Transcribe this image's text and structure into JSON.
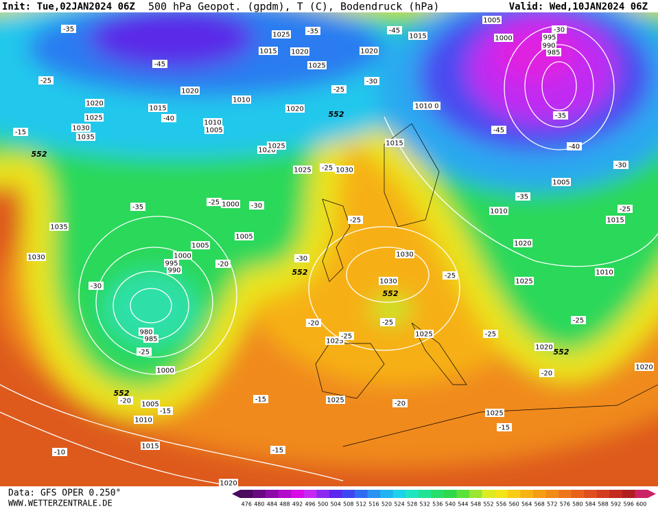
{
  "header": {
    "init": "Init: Tue,02JAN2024 06Z",
    "title": "500 hPa Geopot. (gpdm), T (C), Bodendruck (hPa)",
    "valid": "Valid: Wed,10JAN2024 06Z"
  },
  "footer": {
    "data": "Data: GFS OPER 0.250°",
    "site": "WWW.WETTERZENTRALE.DE"
  },
  "colorbar": {
    "labels": [
      476,
      480,
      484,
      488,
      492,
      496,
      500,
      504,
      508,
      512,
      516,
      520,
      524,
      528,
      532,
      536,
      540,
      544,
      548,
      552,
      556,
      560,
      564,
      568,
      572,
      576,
      580,
      584,
      588,
      592,
      596,
      600
    ],
    "colors": [
      "#4a0a5e",
      "#6a0a82",
      "#8c0aa8",
      "#b40acc",
      "#d80ae6",
      "#c628f2",
      "#8c28f0",
      "#5a28ee",
      "#3c46f0",
      "#2e6cf2",
      "#2a92f2",
      "#22b4f0",
      "#1ed2ea",
      "#1ee6c0",
      "#22e296",
      "#26de6a",
      "#2ed84a",
      "#5ee03a",
      "#9ae632",
      "#dcec22",
      "#f4e41c",
      "#f8cc18",
      "#f6b414",
      "#f49e14",
      "#f28a18",
      "#ee761a",
      "#e8621c",
      "#e04e1e",
      "#d43c20",
      "#c42a20",
      "#b01e22",
      "#cc2266"
    ]
  },
  "pressure_labels": [
    "1025",
    "1015",
    "1020",
    "1025",
    "1020",
    "1015",
    "1005",
    "1000",
    "995",
    "990",
    "985",
    "1020",
    "1015",
    "1010",
    "1020",
    "1010",
    "1005",
    "1020",
    "1025",
    "1025",
    "1030",
    "1015",
    "1010 0",
    "1020",
    "1025",
    "1030",
    "1035",
    "1035",
    "1030",
    "1000",
    "1005",
    "1005",
    "1000",
    "995",
    "990",
    "980",
    "985",
    "1000",
    "1005",
    "1010",
    "1015",
    "1020",
    "1030",
    "1030",
    "1025",
    "1025",
    "1025",
    "1025",
    "1010",
    "1020",
    "1025",
    "1015",
    "1010",
    "1020",
    "1005",
    "1020"
  ],
  "temperature_labels": [
    "-35",
    "-45",
    "-35",
    "-45",
    "-30",
    "-25",
    "-40",
    "-15",
    "-35",
    "-25",
    "-30",
    "-25",
    "-30",
    "-25",
    "-25",
    "-20",
    "-30",
    "-30",
    "-25",
    "-20",
    "-25",
    "-25",
    "-25",
    "-25",
    "-45",
    "-35",
    "-40",
    "-30",
    "-35",
    "-25",
    "-25",
    "-20",
    "-20",
    "-15",
    "-15",
    "-20",
    "-15",
    "-10",
    "-15"
  ],
  "geopotential_labels": [
    "552",
    "552",
    "552",
    "552",
    "552",
    "552"
  ]
}
